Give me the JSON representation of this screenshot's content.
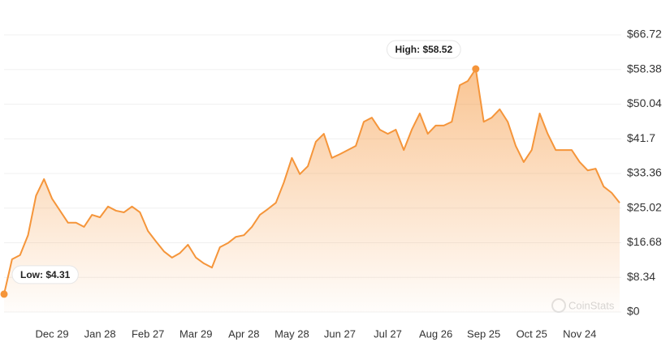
{
  "chart_data": {
    "type": "area",
    "color": "#f5953a",
    "grid": true,
    "ylim": [
      0,
      66.72
    ],
    "yticks": [
      {
        "value": 0,
        "label": "$0"
      },
      {
        "value": 8.34,
        "label": "$8.34"
      },
      {
        "value": 16.68,
        "label": "$16.68"
      },
      {
        "value": 25.02,
        "label": "$25.02"
      },
      {
        "value": 33.36,
        "label": "$33.36"
      },
      {
        "value": 41.7,
        "label": "$41.7"
      },
      {
        "value": 50.04,
        "label": "$50.04"
      },
      {
        "value": 58.38,
        "label": "$58.38"
      },
      {
        "value": 66.72,
        "label": "$66.72"
      }
    ],
    "categories": [
      null,
      null,
      null,
      null,
      null,
      null,
      "Dec 29",
      null,
      null,
      null,
      null,
      null,
      "Jan 28",
      null,
      null,
      null,
      null,
      null,
      "Feb 27",
      null,
      null,
      null,
      null,
      null,
      "Mar 29",
      null,
      null,
      null,
      null,
      null,
      "Apr 28",
      null,
      null,
      null,
      null,
      null,
      "May 28",
      null,
      null,
      null,
      null,
      null,
      "Jun 27",
      null,
      null,
      null,
      null,
      null,
      "Jul 27",
      null,
      null,
      null,
      null,
      null,
      "Aug 26",
      null,
      null,
      null,
      null,
      null,
      "Sep 25",
      null,
      null,
      null,
      null,
      null,
      "Oct 25",
      null,
      null,
      null,
      null,
      null,
      "Nov 24",
      null,
      null,
      null,
      null,
      null
    ],
    "values": [
      4.31,
      12.7,
      13.7,
      18.5,
      28,
      32,
      27.3,
      24.4,
      21.5,
      21.5,
      20.5,
      23.4,
      22.8,
      25.4,
      24.4,
      24,
      25.4,
      24,
      19.5,
      17,
      14.6,
      13.1,
      14.2,
      16.2,
      13.1,
      11.7,
      10.7,
      15.6,
      16.6,
      18.1,
      18.5,
      20.5,
      23.4,
      24.8,
      26.3,
      31.2,
      37.1,
      33.2,
      35.1,
      41,
      42.9,
      37.1,
      38,
      39,
      40,
      45.8,
      46.8,
      43.9,
      42.9,
      43.9,
      39,
      43.9,
      47.8,
      42.9,
      44.9,
      44.9,
      45.8,
      54.6,
      55.6,
      58.52,
      45.8,
      46.8,
      48.8,
      45.8,
      40,
      36.1,
      39,
      47.8,
      42.9,
      39,
      39,
      39,
      36.1,
      34.1,
      34.5,
      30.2,
      28.7,
      26.3
    ],
    "annotations": [
      {
        "text": "Low: $4.31",
        "index": 0
      },
      {
        "text": "High: $58.52",
        "index": 59
      }
    ],
    "watermark": "CoinStats"
  }
}
